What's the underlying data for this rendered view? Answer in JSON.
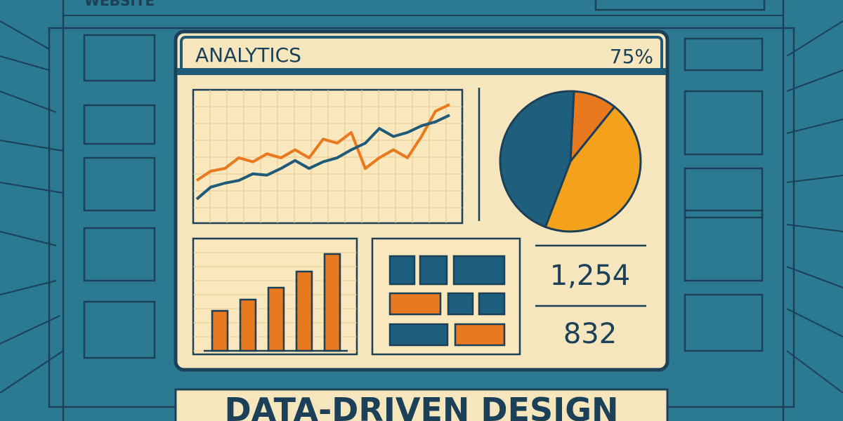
{
  "browser": {
    "label": "WEBSITE"
  },
  "dashboard": {
    "title": "ANALYTICS",
    "percent": "75%",
    "line_chart": {
      "type": "line",
      "grid": true,
      "ylim": [
        0,
        100
      ],
      "series": [
        {
          "color": "#e8791e",
          "values": [
            32,
            39,
            41,
            49,
            46,
            52,
            49,
            55,
            49,
            63,
            60,
            68,
            41,
            49,
            55,
            49,
            65,
            84,
            89
          ]
        },
        {
          "color": "#1f5a78",
          "values": [
            18,
            27,
            30,
            32,
            37,
            36,
            41,
            47,
            41,
            46,
            49,
            55,
            60,
            71,
            65,
            68,
            73,
            76,
            81
          ]
        }
      ]
    },
    "pie": {
      "type": "pie",
      "values": [
        10,
        45,
        45
      ],
      "colors": [
        "#e8791e",
        "#f4a21c",
        "#1f5f7e"
      ]
    },
    "bar_chart": {
      "type": "bar",
      "grid": true,
      "ylim": [
        0,
        160
      ],
      "color": "#e8791e",
      "values": [
        57,
        73,
        90,
        113,
        138
      ]
    },
    "stats": [
      "1,254",
      "832"
    ]
  },
  "banner": {
    "title": "DATA-DRIVEN DESIGN"
  }
}
